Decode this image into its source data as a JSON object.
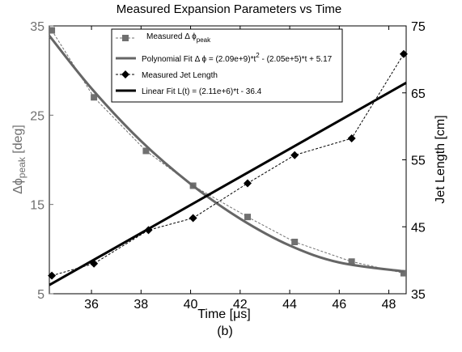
{
  "colors": {
    "left_axis": "#6f6f6f",
    "right_axis": "#000000",
    "measured_phase": "#707070",
    "poly_fit": "#666666",
    "measured_jet": "#000000",
    "linear_fit": "#000000"
  },
  "chart_data": {
    "type": "line",
    "title": "Measured Expansion Parameters vs Time",
    "xlabel": "Time  [μs]",
    "ylabel_left_main": "Δϕ",
    "ylabel_left_sub": "peak",
    "ylabel_left_unit": " [deg]",
    "ylabel_right": "Jet Length [cm]",
    "caption": "(b)",
    "xlim": [
      34.3,
      48.7
    ],
    "ylim_left": [
      5,
      35
    ],
    "ylim_right": [
      35,
      75
    ],
    "xticks": [
      36,
      38,
      40,
      42,
      44,
      46,
      48
    ],
    "yticks_left": [
      5,
      15,
      25,
      35
    ],
    "yticks_right": [
      35,
      45,
      55,
      65,
      75
    ],
    "grid": false,
    "legend_position": "top",
    "legend": {
      "measured_phase_main": "Measured Δ ϕ",
      "measured_phase_sub": "peak",
      "poly_fit_prefix": "Polynomial Fit Δ ϕ = (2.09e+9)*t",
      "poly_fit_sup": "2",
      "poly_fit_suffix": " - (2.05e+5)*t + 5.17",
      "measured_jet": "Measured Jet Length",
      "linear_fit": "Linear Fit L(t) = (2.11e+6)*t - 36.4"
    },
    "series": [
      {
        "name": "Measured Δϕpeak",
        "axis": "left",
        "style": "dashed-square",
        "x": [
          34.4,
          36.1,
          38.2,
          40.1,
          42.3,
          44.2,
          46.5,
          48.6
        ],
        "y": [
          34.5,
          27.0,
          21.0,
          17.1,
          13.6,
          10.8,
          8.6,
          7.3
        ]
      },
      {
        "name": "Polynomial Fit",
        "axis": "left",
        "style": "solid-thick",
        "x": [
          34.3,
          36.0,
          38.0,
          40.0,
          42.0,
          44.0,
          46.0,
          48.6
        ],
        "y": [
          33.9,
          28.0,
          22.1,
          17.3,
          13.4,
          10.4,
          8.5,
          7.5
        ]
      },
      {
        "name": "Measured Jet Length",
        "axis": "right",
        "style": "dashed-diamond",
        "x": [
          34.4,
          36.1,
          38.3,
          40.1,
          42.3,
          44.2,
          46.5,
          48.6
        ],
        "y": [
          37.7,
          39.5,
          44.5,
          46.3,
          51.5,
          55.7,
          58.2,
          70.8
        ]
      },
      {
        "name": "Linear Fit",
        "axis": "right",
        "style": "solid-thick",
        "x": [
          34.3,
          48.7
        ],
        "y": [
          36.3,
          66.5
        ]
      }
    ]
  }
}
